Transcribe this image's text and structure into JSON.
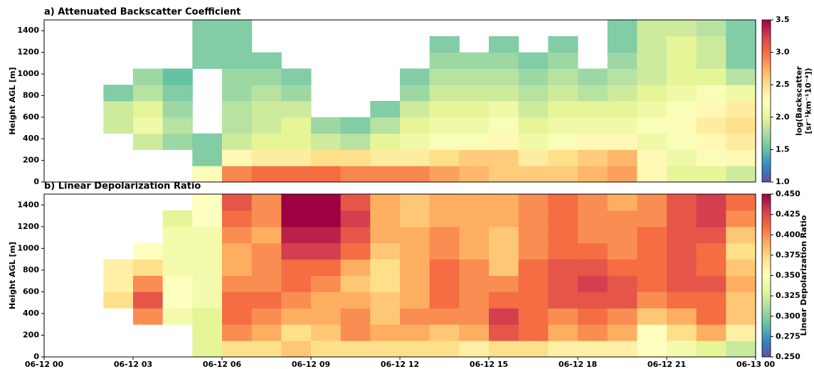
{
  "chart_data": [
    {
      "type": "heatmap",
      "title": "a) Attenuated Backscatter Coefficient",
      "ylabel": "Height AGL [m]",
      "x_edges": [
        0,
        1,
        2,
        3,
        4,
        5,
        6,
        7,
        8,
        9,
        10,
        11,
        12,
        13,
        14,
        15,
        16,
        17,
        18,
        19,
        20,
        21,
        22,
        23,
        24
      ],
      "y_edges": [
        0,
        150,
        300,
        450,
        600,
        750,
        900,
        1050,
        1200,
        1350,
        1500
      ],
      "values": [
        [
          null,
          null,
          null,
          null,
          null,
          2.2,
          2.9,
          3.0,
          3.0,
          3.0,
          2.9,
          2.9,
          2.9,
          2.8,
          2.7,
          2.6,
          2.6,
          2.6,
          2.7,
          2.8,
          2.3,
          2.0,
          2.0,
          1.9
        ],
        [
          null,
          null,
          null,
          null,
          null,
          1.6,
          2.3,
          2.4,
          2.4,
          2.5,
          2.5,
          2.4,
          2.4,
          2.5,
          2.6,
          2.6,
          2.4,
          2.5,
          2.6,
          2.7,
          2.3,
          2.1,
          2.2,
          2.3
        ],
        [
          null,
          null,
          null,
          1.9,
          1.7,
          1.6,
          1.9,
          2.0,
          2.0,
          1.9,
          1.8,
          2.0,
          2.1,
          2.2,
          2.2,
          2.3,
          2.1,
          2.2,
          2.3,
          2.3,
          2.1,
          2.2,
          2.3,
          2.4
        ],
        [
          null,
          null,
          1.9,
          2.1,
          1.8,
          null,
          1.8,
          1.9,
          2.0,
          1.7,
          1.6,
          1.8,
          2.0,
          2.1,
          2.1,
          2.2,
          2.0,
          2.1,
          2.1,
          2.1,
          2.2,
          2.2,
          2.4,
          2.5
        ],
        [
          null,
          null,
          1.9,
          2.0,
          1.7,
          null,
          1.8,
          1.9,
          1.9,
          null,
          null,
          1.6,
          1.9,
          2.0,
          2.0,
          2.1,
          1.9,
          2.0,
          2.0,
          2.0,
          2.1,
          2.2,
          2.3,
          2.4
        ],
        [
          null,
          null,
          1.6,
          1.8,
          1.6,
          null,
          1.7,
          1.8,
          1.7,
          null,
          null,
          null,
          1.7,
          1.9,
          1.9,
          1.9,
          1.8,
          1.9,
          1.8,
          1.9,
          2.0,
          2.1,
          2.2,
          2.1
        ],
        [
          null,
          null,
          null,
          1.7,
          1.5,
          null,
          1.7,
          1.7,
          1.6,
          null,
          null,
          null,
          1.6,
          1.8,
          1.8,
          1.8,
          1.7,
          1.8,
          1.7,
          1.8,
          1.9,
          2.0,
          2.0,
          1.8
        ],
        [
          null,
          null,
          null,
          null,
          null,
          1.6,
          1.6,
          1.6,
          null,
          null,
          null,
          null,
          null,
          1.7,
          1.7,
          1.7,
          1.6,
          1.7,
          null,
          1.7,
          1.9,
          2.0,
          1.9,
          1.6
        ],
        [
          null,
          null,
          null,
          null,
          null,
          1.6,
          1.6,
          null,
          null,
          null,
          null,
          null,
          null,
          1.6,
          null,
          1.6,
          null,
          1.6,
          null,
          1.6,
          1.9,
          2.0,
          1.9,
          1.6
        ],
        [
          null,
          null,
          null,
          null,
          null,
          1.6,
          1.6,
          null,
          null,
          null,
          null,
          null,
          null,
          null,
          null,
          null,
          null,
          null,
          null,
          1.6,
          1.9,
          1.9,
          1.8,
          1.6
        ]
      ],
      "xlim": [
        0,
        24
      ],
      "ylim": [
        0,
        1500
      ],
      "yticks": [
        0,
        200,
        400,
        600,
        800,
        1000,
        1200,
        1400
      ],
      "colormap": [
        "#5e4fa2",
        "#3288bd",
        "#66c2a5",
        "#abdda4",
        "#e6f598",
        "#ffffbf",
        "#fee08b",
        "#fdae61",
        "#f46d43",
        "#d53e4f",
        "#9e0142"
      ],
      "colorbar": {
        "label": [
          "log(Backscatter",
          "[sr⁻¹km⁻¹10⁻⁴])"
        ],
        "lim": [
          1,
          3.5
        ],
        "ticks": [
          {
            "value": 1,
            "label": "1.0"
          },
          {
            "value": 1.5,
            "label": "1.5"
          },
          {
            "value": 2,
            "label": "2.0"
          },
          {
            "value": 2.5,
            "label": "2.5"
          },
          {
            "value": 3,
            "label": "3.0"
          },
          {
            "value": 3.5,
            "label": "3.5"
          }
        ]
      }
    },
    {
      "type": "heatmap",
      "title": "b) Linear Depolarization Ratio",
      "ylabel": "Height AGL [m]",
      "x_edges": [
        0,
        1,
        2,
        3,
        4,
        5,
        6,
        7,
        8,
        9,
        10,
        11,
        12,
        13,
        14,
        15,
        16,
        17,
        18,
        19,
        20,
        21,
        22,
        23,
        24
      ],
      "y_edges": [
        0,
        150,
        300,
        450,
        600,
        750,
        900,
        1050,
        1200,
        1350,
        1500
      ],
      "values": [
        [
          null,
          null,
          null,
          null,
          null,
          0.33,
          0.37,
          0.37,
          0.38,
          0.37,
          0.37,
          0.37,
          0.37,
          0.37,
          0.36,
          0.37,
          0.37,
          0.36,
          0.36,
          0.36,
          0.35,
          0.34,
          0.33,
          0.32
        ],
        [
          null,
          null,
          null,
          null,
          null,
          0.33,
          0.4,
          0.39,
          0.37,
          0.38,
          0.4,
          0.39,
          0.39,
          0.38,
          0.39,
          0.42,
          0.41,
          0.39,
          0.4,
          0.39,
          0.35,
          0.37,
          0.39,
          0.36
        ],
        [
          null,
          null,
          null,
          0.4,
          0.34,
          0.33,
          0.41,
          0.4,
          0.39,
          0.39,
          0.4,
          0.38,
          0.4,
          0.4,
          0.4,
          0.43,
          0.41,
          0.4,
          0.41,
          0.4,
          0.38,
          0.39,
          0.41,
          0.38
        ],
        [
          null,
          null,
          0.37,
          0.42,
          0.35,
          0.34,
          0.41,
          0.41,
          0.4,
          0.39,
          0.39,
          0.38,
          0.39,
          0.41,
          0.4,
          0.41,
          0.41,
          0.42,
          0.42,
          0.42,
          0.4,
          0.41,
          0.41,
          0.38
        ],
        [
          null,
          null,
          0.36,
          0.4,
          0.35,
          0.34,
          0.4,
          0.4,
          0.41,
          0.4,
          0.38,
          0.37,
          0.39,
          0.41,
          0.4,
          0.4,
          0.41,
          0.42,
          0.43,
          0.42,
          0.41,
          0.42,
          0.42,
          0.39
        ],
        [
          null,
          null,
          0.36,
          0.37,
          0.34,
          0.34,
          0.39,
          0.4,
          0.41,
          0.41,
          0.39,
          0.37,
          0.39,
          0.41,
          0.4,
          0.38,
          0.41,
          0.42,
          0.42,
          0.41,
          0.41,
          0.42,
          0.41,
          0.38
        ],
        [
          null,
          null,
          null,
          0.35,
          0.34,
          0.34,
          0.39,
          0.4,
          0.43,
          0.43,
          0.41,
          0.38,
          0.39,
          0.4,
          0.39,
          0.38,
          0.4,
          0.41,
          0.41,
          0.4,
          0.41,
          0.42,
          0.41,
          0.37
        ],
        [
          null,
          null,
          null,
          null,
          0.34,
          0.34,
          0.4,
          0.39,
          0.44,
          0.44,
          0.42,
          0.39,
          0.39,
          0.4,
          0.39,
          0.38,
          0.4,
          0.41,
          0.4,
          0.4,
          0.41,
          0.42,
          0.42,
          0.38
        ],
        [
          null,
          null,
          null,
          null,
          0.33,
          0.35,
          0.41,
          0.4,
          0.45,
          0.45,
          0.43,
          0.39,
          0.38,
          0.39,
          0.39,
          0.39,
          0.4,
          0.41,
          0.4,
          0.4,
          0.4,
          0.42,
          0.43,
          0.4
        ],
        [
          null,
          null,
          null,
          null,
          null,
          0.35,
          0.42,
          0.4,
          0.45,
          0.45,
          0.42,
          0.39,
          0.38,
          0.39,
          0.39,
          0.39,
          0.4,
          0.41,
          0.4,
          0.39,
          0.4,
          0.42,
          0.43,
          0.41
        ]
      ],
      "xlim": [
        0,
        24
      ],
      "ylim": [
        0,
        1500
      ],
      "yticks": [
        0,
        200,
        400,
        600,
        800,
        1000,
        1200,
        1400
      ],
      "xticks": [
        {
          "value": 0,
          "label": "06-12 00"
        },
        {
          "value": 3,
          "label": "06-12 03"
        },
        {
          "value": 6,
          "label": "06-12 06"
        },
        {
          "value": 9,
          "label": "06-12 09"
        },
        {
          "value": 12,
          "label": "06-12 12"
        },
        {
          "value": 15,
          "label": "06-12 15"
        },
        {
          "value": 18,
          "label": "06-12 18"
        },
        {
          "value": 21,
          "label": "06-12 21"
        },
        {
          "value": 24,
          "label": "06-13 00"
        }
      ],
      "colormap": [
        "#5e4fa2",
        "#3288bd",
        "#66c2a5",
        "#abdda4",
        "#e6f598",
        "#ffffbf",
        "#fee08b",
        "#fdae61",
        "#f46d43",
        "#d53e4f",
        "#9e0142"
      ],
      "colorbar": {
        "label": [
          "Linear Depolarization Ratio"
        ],
        "lim": [
          0.25,
          0.45
        ],
        "ticks": [
          {
            "value": 0.25,
            "label": "0.250"
          },
          {
            "value": 0.275,
            "label": "0.275"
          },
          {
            "value": 0.3,
            "label": "0.300"
          },
          {
            "value": 0.325,
            "label": "0.325"
          },
          {
            "value": 0.35,
            "label": "0.350"
          },
          {
            "value": 0.375,
            "label": "0.375"
          },
          {
            "value": 0.4,
            "label": "0.400"
          },
          {
            "value": 0.425,
            "label": "0.425"
          },
          {
            "value": 0.45,
            "label": "0.450"
          }
        ]
      }
    }
  ]
}
